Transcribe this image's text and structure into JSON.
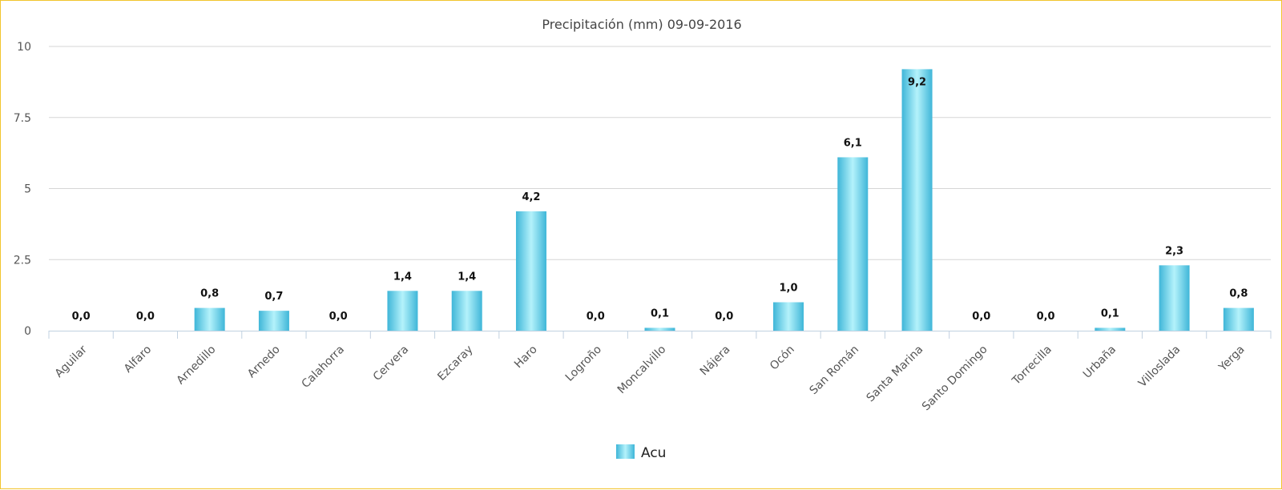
{
  "chart_data": {
    "type": "bar",
    "title": "Precipitación (mm) 09-09-2016",
    "xlabel": "",
    "ylabel": "",
    "ylim": [
      0,
      10
    ],
    "yticks": [
      0,
      2.5,
      5,
      7.5,
      10
    ],
    "ytick_labels": [
      "0",
      "2.5",
      "5",
      "7.5",
      "10"
    ],
    "categories": [
      "Aguilar",
      "Alfaro",
      "Arnedillo",
      "Arnedo",
      "Calahorra",
      "Cervera",
      "Ezcaray",
      "Haro",
      "Logroño",
      "Moncalvillo",
      "Nájera",
      "Ocón",
      "San Román",
      "Santa Marina",
      "Santo Domingo",
      "Torrecilla",
      "Urbaña",
      "Villoslada",
      "Yerga"
    ],
    "series": [
      {
        "name": "Acu",
        "values": [
          0.0,
          0.0,
          0.8,
          0.7,
          0.0,
          1.4,
          1.4,
          4.2,
          0.0,
          0.1,
          0.0,
          1.0,
          6.1,
          9.2,
          0.0,
          0.0,
          0.1,
          2.3,
          0.8
        ],
        "labels": [
          "0,0",
          "0,0",
          "0,8",
          "0,7",
          "0,0",
          "1,4",
          "1,4",
          "4,2",
          "0,0",
          "0,1",
          "0,0",
          "1,0",
          "6,1",
          "9,2",
          "0,0",
          "0,0",
          "0,1",
          "2,3",
          "0,8"
        ],
        "color": "#5bc8e4"
      }
    ],
    "legend": {
      "position": "bottom-center",
      "entries": [
        "Acu"
      ]
    },
    "grid": true
  },
  "colors": {
    "bar_edge": "#3fb6d8",
    "bar_highlight": "#b4f2fb",
    "grid": "#d6d6d6",
    "axis": "#c0d0e0",
    "frame": "#f2c52e"
  }
}
